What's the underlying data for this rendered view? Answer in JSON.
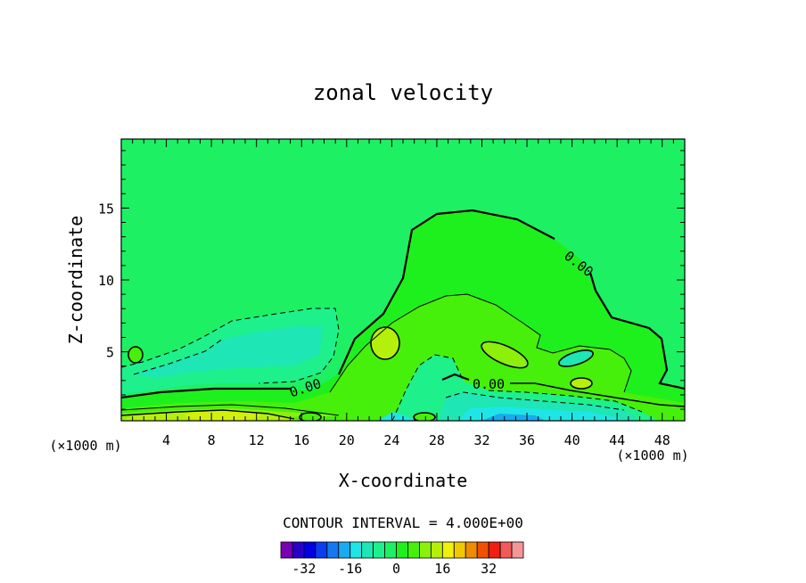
{
  "chart_data": {
    "type": "contour",
    "title": "zonal velocity",
    "xlabel": "X-coordinate",
    "ylabel": "Z-coordinate",
    "x_unit": "(×1000 m)",
    "z_unit": "(×1000 m)",
    "xlim": [
      0,
      50
    ],
    "ylim": [
      0.2,
      19.8
    ],
    "x_ticks": [
      "4",
      "8",
      "12",
      "16",
      "20",
      "24",
      "28",
      "32",
      "36",
      "40",
      "44",
      "48"
    ],
    "x_tick_values": [
      4,
      8,
      12,
      16,
      20,
      24,
      28,
      32,
      36,
      40,
      44,
      48
    ],
    "y_ticks": [
      "5",
      "10",
      "15"
    ],
    "y_tick_values": [
      5,
      10,
      15
    ],
    "contour_labels": [
      "0.00",
      "0.00",
      "0.00"
    ],
    "contour_interval_text": "CONTOUR INTERVAL = 4.000E+00",
    "colorbar": {
      "tick_labels": [
        "-32",
        "-16",
        "0",
        "16",
        "32"
      ],
      "tick_values": [
        -32,
        -16,
        0,
        16,
        32
      ],
      "levels": [
        -36,
        -32,
        -28,
        -24,
        -20,
        -16,
        -12,
        -8,
        -4,
        0,
        4,
        8,
        12,
        16,
        20,
        24,
        28,
        32,
        36
      ],
      "colors": [
        "#7a00b4",
        "#2a00c8",
        "#0000e6",
        "#0a3cf0",
        "#1478f0",
        "#19aaf0",
        "#1ee6e6",
        "#1ee6b4",
        "#1ef08c",
        "#1ef064",
        "#1ef01e",
        "#46f00a",
        "#8cf00a",
        "#b4f00a",
        "#f0f00a",
        "#f0c800",
        "#f08c00",
        "#f05000",
        "#f01e14",
        "#f05a5a",
        "#f59696"
      ]
    },
    "background_color": "#1ef064"
  }
}
